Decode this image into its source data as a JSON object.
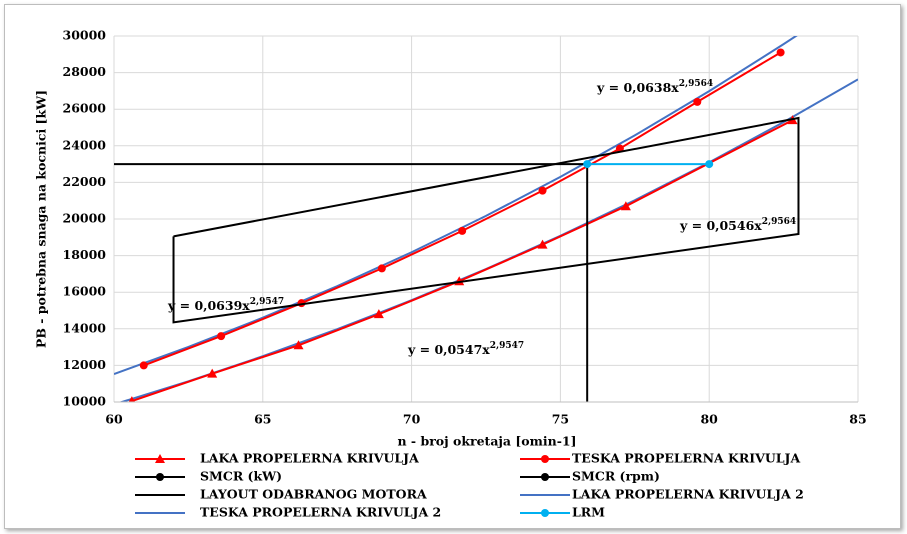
{
  "chart_data": {
    "type": "scatter",
    "x_label": "n - broj okretaja [omin-1]",
    "y_label": "PB - potrebna snaga na kocnici [kW]",
    "xlim": [
      60,
      85
    ],
    "xticks": [
      60,
      65,
      70,
      75,
      80,
      85
    ],
    "ylim": [
      10000,
      30000
    ],
    "yticks": [
      10000,
      12000,
      14000,
      16000,
      18000,
      20000,
      22000,
      24000,
      26000,
      28000,
      30000
    ],
    "grid": true,
    "legend": "bottom",
    "series": [
      {
        "name": "LAKA PROPELERNA KRIVULJA",
        "color": "#ff0000",
        "marker": "triangle",
        "x": [
          60.6,
          63.3,
          66.2,
          68.9,
          71.6,
          74.4,
          77.2,
          82.8
        ],
        "values": [
          10050,
          11550,
          13100,
          14800,
          16600,
          18600,
          20700,
          25400
        ]
      },
      {
        "name": "TESKA PROPELERNA KRIVULJA",
        "color": "#ff0000",
        "marker": "circle",
        "x": [
          61,
          63.6,
          66.3,
          69,
          71.7,
          74.4,
          77,
          79.6,
          82.4
        ],
        "values": [
          12000,
          13600,
          15400,
          17300,
          19350,
          21550,
          23850,
          26400,
          29100
        ]
      },
      {
        "name": "SMCR (kW)",
        "color": "#000000",
        "marker": "circle",
        "markers_in_plot": false,
        "x": [
          60,
          75.9
        ],
        "values": [
          23000,
          23000
        ]
      },
      {
        "name": "SMCR (rpm)",
        "color": "#000000",
        "marker": "circle",
        "markers_in_plot": false,
        "x": [
          75.9,
          75.9
        ],
        "values": [
          10000,
          23000
        ]
      },
      {
        "name": "LAYOUT ODABRANOG MOTORA",
        "color": "#000000",
        "marker": "none",
        "x": [
          62,
          62,
          83,
          83,
          62
        ],
        "values": [
          19050,
          14350,
          19180,
          25520,
          19050
        ]
      },
      {
        "name": "LAKA PROPELERNA KRIVULJA 2",
        "color": "#4472c4",
        "marker": "none",
        "x": [
          60,
          62.5,
          65,
          67.5,
          70,
          72.5,
          75,
          77.5,
          80,
          82.5,
          85
        ],
        "values": [
          9866,
          11131,
          12500,
          13976,
          15562,
          17263,
          19084,
          21025,
          23096,
          25293,
          27628
        ]
      },
      {
        "name": "TESKA PROPELERNA KRIVULJA 2",
        "color": "#4472c4",
        "marker": "none",
        "x": [
          60,
          62.5,
          65,
          67.5,
          70,
          72.5,
          75,
          77.5,
          80,
          82.5,
          83
        ],
        "values": [
          11528,
          13007,
          14606,
          16331,
          18184,
          20172,
          22300,
          24568,
          26988,
          29555,
          30089
        ]
      },
      {
        "name": "LRM",
        "color": "#00b0f0",
        "marker": "circle",
        "x": [
          75.9,
          80
        ],
        "values": [
          23000,
          23000
        ]
      }
    ],
    "annotations": [
      {
        "text": "y = 0,0638x",
        "exponent": "2,9564"
      },
      {
        "text": "y = 0,0546x",
        "exponent": "2,9564"
      },
      {
        "text": "y = 0,0639x",
        "exponent": "2,9547"
      },
      {
        "text": "y = 0,0547x",
        "exponent": "2,9547"
      }
    ]
  }
}
